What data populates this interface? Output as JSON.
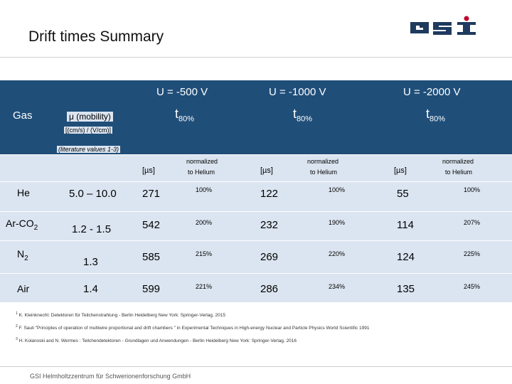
{
  "slide": {
    "title": "Drift times Summary",
    "logo_text": "GSI",
    "organization": "GSI Helmholtzzentrum für Schwerionenforschung GmbH"
  },
  "table": {
    "header": {
      "gas": "Gas",
      "mobility": "μ (mobility)",
      "mobility_units": "[(cm/s) / (V/cm)]",
      "literature": "(literature values 1-3)",
      "voltages": [
        "U = -500 V",
        "U = -1000 V",
        "U = -2000 V"
      ],
      "t80": "t",
      "t80_sub": "80%",
      "unit_us": "[µs]",
      "normalized": "normalized",
      "to_helium": "to Helium"
    },
    "rows": [
      {
        "gas": "He",
        "gas_sub": "",
        "mobility": "5.0 – 10.0",
        "v500": "271",
        "n500": "100%",
        "v1000": "122",
        "n1000": "100%",
        "v2000": "55",
        "n2000": "100%"
      },
      {
        "gas": "Ar-CO",
        "gas_sub": "2",
        "mobility": "1.2 - 1.5",
        "v500": "542",
        "n500": "200%",
        "v1000": "232",
        "n1000": "190%",
        "v2000": "114",
        "n2000": "207%"
      },
      {
        "gas": "N",
        "gas_sub": "2",
        "mobility": "1.3",
        "v500": "585",
        "n500": "215%",
        "v1000": "269",
        "n1000": "220%",
        "v2000": "124",
        "n2000": "225%"
      },
      {
        "gas": "Air",
        "gas_sub": "",
        "mobility": "1.4",
        "v500": "599",
        "n500": "221%",
        "v1000": "286",
        "n1000": "234%",
        "v2000": "135",
        "n2000": "245%"
      }
    ]
  },
  "footnotes": [
    {
      "num": "1",
      "text": "K. Kleinknecht: Detektoren für Teilchenstrahlung - Berlin Heidelberg New York: Springer-Verlag, 2015"
    },
    {
      "num": "2",
      "text": "F. Sauli \"Principles of operation of multiwire proportional and drift chambers \" in Experimental Techniques in High-energy Nuclear and Particle Physics World Scientific 1991"
    },
    {
      "num": "3",
      "text": "H. Kolanoski and N. Wermes : Teilchendetektoren - Grundlagen und Anwendungen - Berlin Heidelberg New York: Springer-Verlag, 2016"
    }
  ],
  "colors": {
    "header": "#1f4e79",
    "body": "#dbe5f1"
  }
}
